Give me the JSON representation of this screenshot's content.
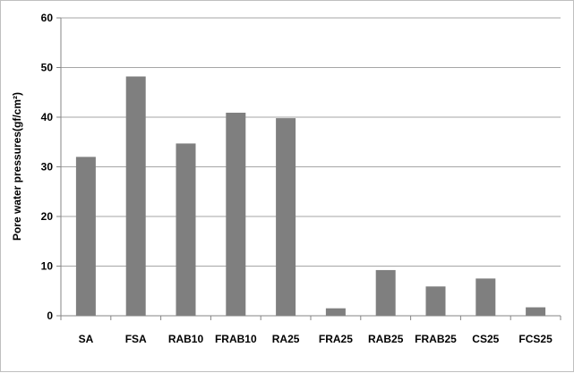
{
  "chart_data": {
    "type": "bar",
    "title": "",
    "xlabel": "",
    "ylabel": "Pore water pressures(gf/cm²)",
    "ylim": [
      0,
      60
    ],
    "yticks": [
      0,
      10,
      20,
      30,
      40,
      50,
      60
    ],
    "grid": true,
    "legend": "none",
    "categories": [
      "SA",
      "FSA",
      "RAB10",
      "FRAB10",
      "RA25",
      "FRA25",
      "RAB25",
      "FRAB25",
      "CS25",
      "FCS25"
    ],
    "values": [
      32,
      48.2,
      34.7,
      40.9,
      39.8,
      1.5,
      9.2,
      5.9,
      7.5,
      1.7
    ],
    "bar_color": "#7f7f7f",
    "grid_color": "#a6a6a6"
  }
}
